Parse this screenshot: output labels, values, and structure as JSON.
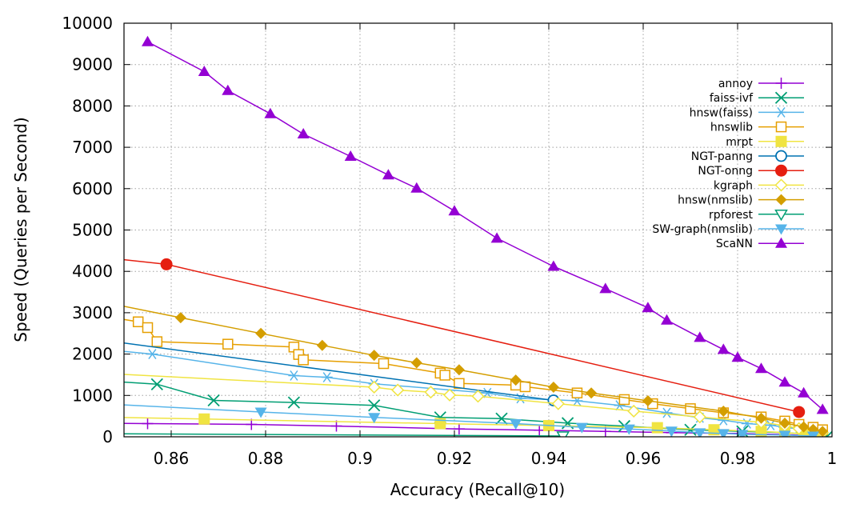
{
  "chart_data": {
    "type": "line",
    "xlabel": "Accuracy (Recall@10)",
    "ylabel": "Speed (Queries per Second)",
    "xlim": [
      0.85,
      1.0
    ],
    "ylim": [
      0,
      10000
    ],
    "xticks": [
      0.86,
      0.88,
      0.9,
      0.92,
      0.94,
      0.96,
      0.98,
      1.0
    ],
    "xtick_labels": [
      "0.86",
      "0.88",
      "0.9",
      "0.92",
      "0.94",
      "0.96",
      "0.98",
      "1"
    ],
    "yticks": [
      0,
      1000,
      2000,
      3000,
      4000,
      5000,
      6000,
      7000,
      8000,
      9000,
      10000
    ],
    "ytick_labels": [
      "0",
      "1000",
      "2000",
      "3000",
      "4000",
      "5000",
      "6000",
      "7000",
      "8000",
      "9000",
      "10000"
    ],
    "grid": true,
    "legend_position": "right",
    "series": [
      {
        "name": "annoy",
        "color": "#9400d3",
        "marker": "plus",
        "x": [
          0.8,
          0.855,
          0.877,
          0.895,
          0.921,
          0.938,
          0.952,
          0.966,
          0.98,
          0.99,
          0.997
        ],
        "y": [
          360,
          320,
          300,
          260,
          190,
          160,
          130,
          100,
          80,
          55,
          20
        ]
      },
      {
        "name": "faiss-ivf",
        "color": "#009e73",
        "marker": "x",
        "x": [
          0.8,
          0.857,
          0.869,
          0.886,
          0.903,
          0.917,
          0.93,
          0.944,
          0.956,
          0.97,
          0.981,
          0.99,
          0.996,
          0.999
        ],
        "y": [
          1700,
          1270,
          880,
          830,
          760,
          470,
          440,
          330,
          260,
          170,
          130,
          100,
          50,
          10
        ]
      },
      {
        "name": "hnsw(faiss)",
        "color": "#56b4e9",
        "marker": "asterisk",
        "x": [
          0.8,
          0.856,
          0.886,
          0.893,
          0.903,
          0.927,
          0.934,
          0.946,
          0.955,
          0.965,
          0.972,
          0.977,
          0.982,
          0.987,
          0.99,
          0.993,
          0.996,
          0.998
        ],
        "y": [
          2600,
          2000,
          1480,
          1440,
          1280,
          1060,
          930,
          870,
          760,
          580,
          460,
          400,
          320,
          280,
          230,
          190,
          140,
          90
        ]
      },
      {
        "name": "hnswlib",
        "color": "#e69f00",
        "marker": "open-square",
        "x": [
          0.8,
          0.853,
          0.855,
          0.857,
          0.872,
          0.886,
          0.887,
          0.888,
          0.905,
          0.917,
          0.918,
          0.921,
          0.933,
          0.935,
          0.946,
          0.956,
          0.962,
          0.97,
          0.977,
          0.985,
          0.99,
          0.993,
          0.996,
          0.998
        ],
        "y": [
          3800,
          2780,
          2640,
          2300,
          2240,
          2170,
          1990,
          1860,
          1770,
          1540,
          1490,
          1290,
          1250,
          1210,
          1060,
          900,
          800,
          680,
          580,
          480,
          380,
          300,
          230,
          170
        ]
      },
      {
        "name": "mrpt",
        "color": "#f0e442",
        "marker": "filled-square",
        "x": [
          0.8,
          0.867,
          0.917,
          0.94,
          0.963,
          0.975,
          0.985,
          0.99,
          0.994,
          0.997
        ],
        "y": [
          580,
          430,
          320,
          270,
          220,
          170,
          130,
          100,
          70,
          40
        ]
      },
      {
        "name": "NGT-panng",
        "color": "#0072b2",
        "marker": "open-circle",
        "x": [
          0.8,
          0.941
        ],
        "y": [
          3030,
          880
        ]
      },
      {
        "name": "NGT-onng",
        "color": "#e51e10",
        "marker": "filled-circle",
        "x": [
          0.8,
          0.859,
          0.993
        ],
        "y": [
          4900,
          4170,
          600
        ]
      },
      {
        "name": "kgraph",
        "color": "#f0e442",
        "marker": "open-diamond",
        "x": [
          0.8,
          0.903,
          0.908,
          0.915,
          0.919,
          0.925,
          0.942,
          0.958,
          0.972,
          0.985,
          0.99,
          0.993,
          0.996,
          0.998
        ],
        "y": [
          1800,
          1200,
          1130,
          1080,
          1010,
          980,
          800,
          620,
          480,
          350,
          270,
          200,
          150,
          100
        ]
      },
      {
        "name": "hnsw(nmslib)",
        "color": "#d49e00",
        "marker": "filled-diamond",
        "x": [
          0.8,
          0.862,
          0.879,
          0.892,
          0.903,
          0.912,
          0.921,
          0.933,
          0.941,
          0.949,
          0.961,
          0.977,
          0.985,
          0.99,
          0.994,
          0.996,
          0.998
        ],
        "y": [
          4300,
          2880,
          2500,
          2210,
          1970,
          1790,
          1620,
          1370,
          1200,
          1060,
          870,
          620,
          450,
          330,
          240,
          180,
          130
        ]
      },
      {
        "name": "rpforest",
        "color": "#009e73",
        "marker": "open-triangle-down",
        "x": [
          0.8,
          0.943
        ],
        "y": [
          100,
          20
        ]
      },
      {
        "name": "SW-graph(nmslib)",
        "color": "#56b4e9",
        "marker": "filled-triangle-down",
        "x": [
          0.8,
          0.879,
          0.903,
          0.933,
          0.947,
          0.957,
          0.966,
          0.972,
          0.977,
          0.981,
          0.99,
          0.996
        ],
        "y": [
          1070,
          600,
          470,
          320,
          230,
          190,
          140,
          100,
          80,
          60,
          40,
          20
        ]
      },
      {
        "name": "ScaNN",
        "color": "#9400d3",
        "marker": "filled-triangle-up",
        "x": [
          0.855,
          0.867,
          0.872,
          0.881,
          0.888,
          0.898,
          0.906,
          0.912,
          0.92,
          0.929,
          0.941,
          0.952,
          0.961,
          0.965,
          0.972,
          0.977,
          0.98,
          0.985,
          0.99,
          0.994,
          0.998
        ],
        "y": [
          9550,
          8830,
          8370,
          7810,
          7320,
          6780,
          6330,
          6010,
          5460,
          4800,
          4120,
          3580,
          3120,
          2820,
          2400,
          2110,
          1920,
          1650,
          1320,
          1060,
          660
        ]
      }
    ]
  }
}
